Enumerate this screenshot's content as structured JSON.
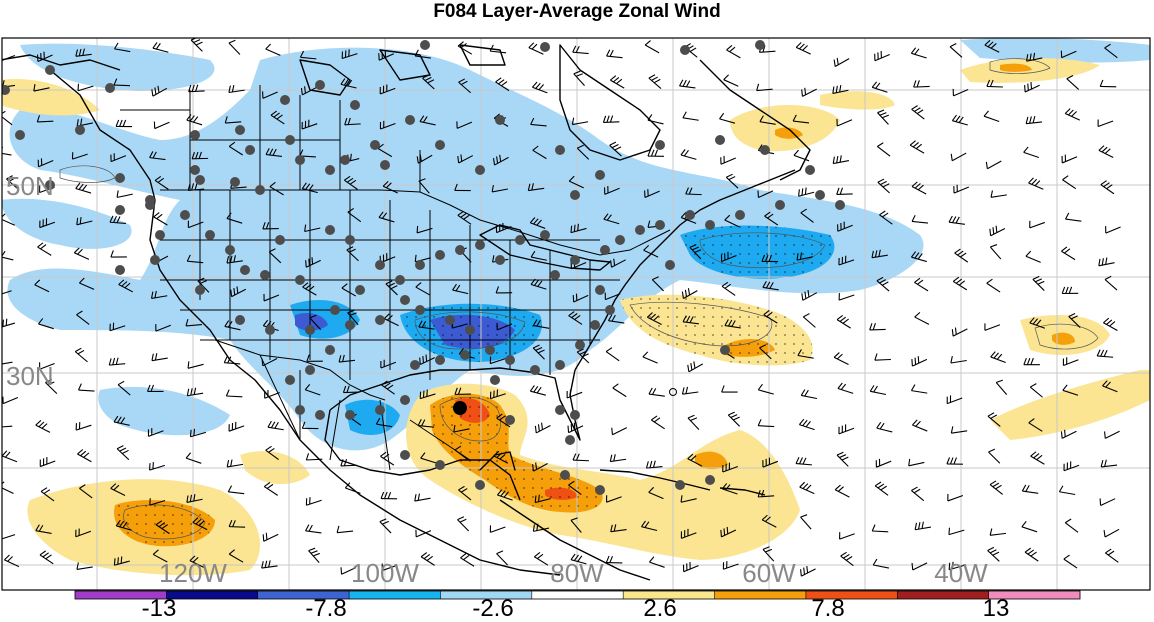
{
  "title": "F084 Layer-Average Zonal Wind",
  "lat_labels": [
    "50N",
    "30N"
  ],
  "lon_labels": [
    "120W",
    "100W",
    "80W",
    "60W",
    "40W"
  ],
  "colorbar": {
    "labels": [
      "-13",
      "-7.8",
      "-2.6",
      "2.6",
      "7.8",
      "13"
    ],
    "colors": [
      "#a03cc8",
      "#0a0a8c",
      "#3c64d2",
      "#14b4f0",
      "#a0d7f5",
      "#ffffff",
      "#fae68c",
      "#f5a00a",
      "#f05014",
      "#a01e1e",
      "#f08cbe"
    ]
  },
  "fill_colors": {
    "light_blue": "#a9d8f7",
    "mid_blue": "#1eaaf0",
    "dark_blue": "#3c5ad2",
    "light_yellow": "#fbe592",
    "orange": "#f5a00a",
    "red_orange": "#f05014"
  },
  "station_color": "#4d4d4d",
  "marker_color": "#000000"
}
